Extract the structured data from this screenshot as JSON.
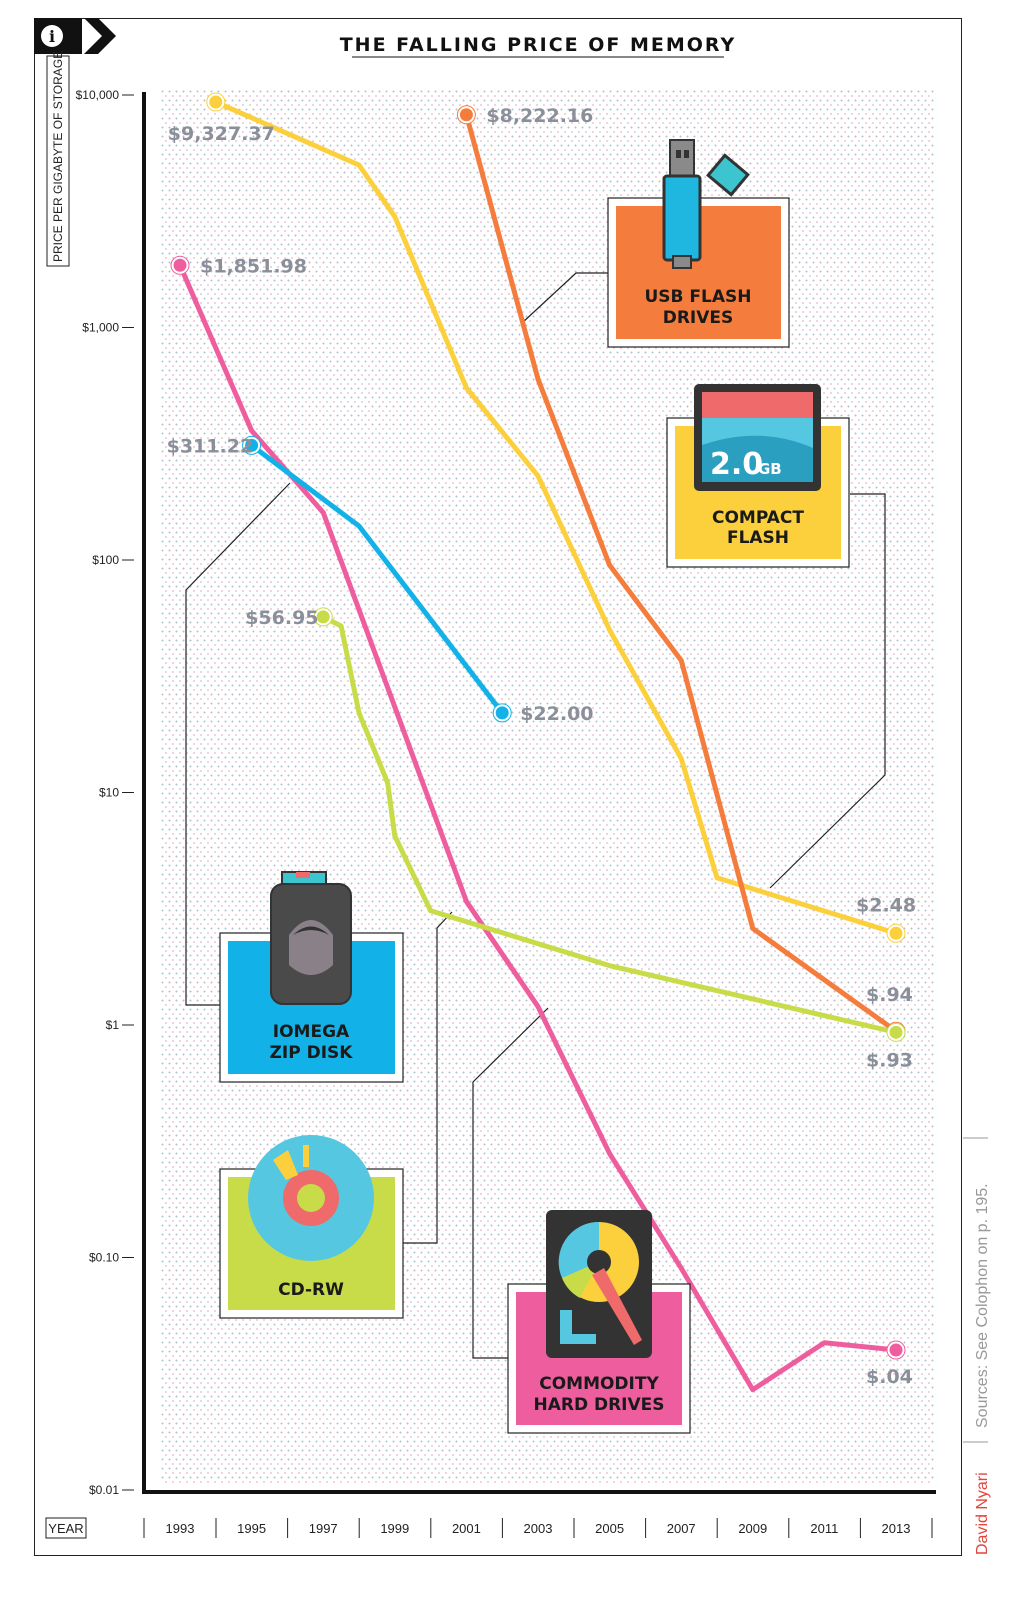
{
  "title": "THE FALLING PRICE OF MEMORY",
  "y_axis_label": "PRICE PER GIGABYTE OF STORAGE",
  "x_axis_label": "YEAR",
  "info_icon": "info-icon",
  "credits": {
    "sources": "Sources: See Colophon on p. 195.",
    "author": "David Nyari"
  },
  "colors": {
    "usb": "#f47c3c",
    "cf": "#fcd03c",
    "zip": "#12b2e8",
    "cdrw": "#c8dc4a",
    "hdd": "#ee5e9f",
    "label_gray": "#8a8f99"
  },
  "chart_data": {
    "type": "line",
    "title": "THE FALLING PRICE OF MEMORY",
    "xlabel": "YEAR",
    "ylabel": "PRICE PER GIGABYTE OF STORAGE",
    "y_scale": "log",
    "ylim": [
      0.01,
      10000
    ],
    "xlim": [
      1992.5,
      2013.5
    ],
    "x_ticks": [
      "1993",
      "1995",
      "1997",
      "1999",
      "2001",
      "2003",
      "2005",
      "2007",
      "2009",
      "2011",
      "2013"
    ],
    "y_ticks": [
      {
        "value": 10000,
        "label": "$10,000"
      },
      {
        "value": 1000,
        "label": "$1,000"
      },
      {
        "value": 100,
        "label": "$100"
      },
      {
        "value": 10,
        "label": "$10"
      },
      {
        "value": 1,
        "label": "$1"
      },
      {
        "value": 0.1,
        "label": "$0.10"
      },
      {
        "value": 0.01,
        "label": "$0.01"
      }
    ],
    "grid": "dotted",
    "series": [
      {
        "key": "cf",
        "name": "COMPACT FLASH",
        "color": "#fcd03c",
        "points": [
          [
            1994,
            9327.37
          ],
          [
            1998,
            5000
          ],
          [
            1999,
            3000
          ],
          [
            2001,
            550
          ],
          [
            2003,
            230
          ],
          [
            2005,
            50
          ],
          [
            2007,
            14
          ],
          [
            2008,
            4.3
          ],
          [
            2013,
            2.48
          ]
        ],
        "start_label": "$9,327.37",
        "end_label": "$2.48"
      },
      {
        "key": "usb",
        "name": "USB FLASH DRIVES",
        "color": "#f47c3c",
        "points": [
          [
            2001,
            8222.16
          ],
          [
            2003,
            600
          ],
          [
            2005,
            95
          ],
          [
            2007,
            37
          ],
          [
            2009,
            2.6
          ],
          [
            2013,
            0.94
          ]
        ],
        "start_label": "$8,222.16",
        "end_label": "$.94"
      },
      {
        "key": "hdd",
        "name": "COMMODITY HARD DRIVES",
        "color": "#ee5e9f",
        "points": [
          [
            1993,
            1851.98
          ],
          [
            1995,
            360
          ],
          [
            1997,
            160
          ],
          [
            2001,
            3.4
          ],
          [
            2003,
            1.2
          ],
          [
            2005,
            0.28
          ],
          [
            2007,
            0.09
          ],
          [
            2009,
            0.027
          ],
          [
            2011,
            0.043
          ],
          [
            2013,
            0.04
          ]
        ],
        "start_label": "$1,851.98",
        "end_label": "$.04"
      },
      {
        "key": "zip",
        "name": "IOMEGA ZIP DISK",
        "color": "#12b2e8",
        "points": [
          [
            1995,
            311.22
          ],
          [
            1998,
            140
          ],
          [
            2002,
            22.0
          ]
        ],
        "start_label": "$311.22",
        "end_label": "$22.00"
      },
      {
        "key": "cdrw",
        "name": "CD-RW",
        "color": "#c8dc4a",
        "points": [
          [
            1997,
            56.95
          ],
          [
            1997.5,
            52
          ],
          [
            1998,
            22
          ],
          [
            1998.8,
            11
          ],
          [
            1999,
            6.5
          ],
          [
            2000,
            3.1
          ],
          [
            2005,
            1.8
          ],
          [
            2013,
            0.93
          ]
        ],
        "start_label": "$56.95",
        "end_label": "$.93"
      }
    ]
  },
  "boxes": {
    "usb": {
      "line1": "USB FLASH",
      "line2": "DRIVES",
      "icon": "usb-drive-icon"
    },
    "cf": {
      "line1": "COMPACT",
      "line2": "FLASH",
      "card_text": "2.0",
      "card_unit": "GB",
      "icon": "compact-flash-card-icon"
    },
    "zip": {
      "line1": "IOMEGA",
      "line2": "ZIP DISK",
      "icon": "zip-disk-icon"
    },
    "cdrw": {
      "line1": "CD-RW",
      "icon": "cd-disc-icon"
    },
    "hdd": {
      "line1": "COMMODITY",
      "line2": "HARD DRIVES",
      "icon": "hard-drive-icon"
    }
  }
}
